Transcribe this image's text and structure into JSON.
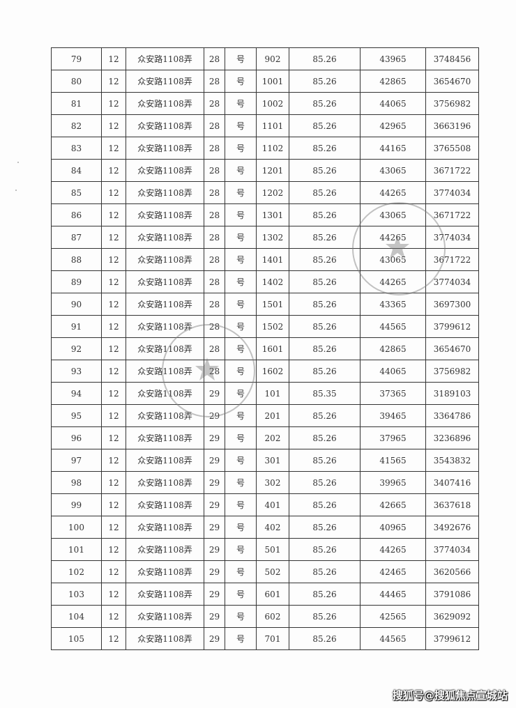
{
  "table": {
    "lane": "众安路1108弄",
    "hao": "号",
    "rows": [
      [
        "79",
        "12",
        "28",
        "902",
        "85.26",
        "43965",
        "3748456"
      ],
      [
        "80",
        "12",
        "28",
        "1001",
        "85.26",
        "42865",
        "3654670"
      ],
      [
        "81",
        "12",
        "28",
        "1002",
        "85.26",
        "44065",
        "3756982"
      ],
      [
        "82",
        "12",
        "28",
        "1101",
        "85.26",
        "42965",
        "3663196"
      ],
      [
        "83",
        "12",
        "28",
        "1102",
        "85.26",
        "44165",
        "3765508"
      ],
      [
        "84",
        "12",
        "28",
        "1201",
        "85.26",
        "43065",
        "3671722"
      ],
      [
        "85",
        "12",
        "28",
        "1202",
        "85.26",
        "44265",
        "3774034"
      ],
      [
        "86",
        "12",
        "28",
        "1301",
        "85.26",
        "43065",
        "3671722"
      ],
      [
        "87",
        "12",
        "28",
        "1302",
        "85.26",
        "44265",
        "3774034"
      ],
      [
        "88",
        "12",
        "28",
        "1401",
        "85.26",
        "43065",
        "3671722"
      ],
      [
        "89",
        "12",
        "28",
        "1402",
        "85.26",
        "44265",
        "3774034"
      ],
      [
        "90",
        "12",
        "28",
        "1501",
        "85.26",
        "43365",
        "3697300"
      ],
      [
        "91",
        "12",
        "28",
        "1502",
        "85.26",
        "44565",
        "3799612"
      ],
      [
        "92",
        "12",
        "28",
        "1601",
        "85.26",
        "42865",
        "3654670"
      ],
      [
        "93",
        "12",
        "28",
        "1602",
        "85.26",
        "44065",
        "3756982"
      ],
      [
        "94",
        "12",
        "29",
        "101",
        "85.35",
        "37365",
        "3189103"
      ],
      [
        "95",
        "12",
        "29",
        "201",
        "85.26",
        "39465",
        "3364786"
      ],
      [
        "96",
        "12",
        "29",
        "202",
        "85.26",
        "37965",
        "3236896"
      ],
      [
        "97",
        "12",
        "29",
        "301",
        "85.26",
        "41565",
        "3543832"
      ],
      [
        "98",
        "12",
        "29",
        "302",
        "85.26",
        "39965",
        "3407416"
      ],
      [
        "99",
        "12",
        "29",
        "401",
        "85.26",
        "42665",
        "3637618"
      ],
      [
        "100",
        "12",
        "29",
        "402",
        "85.26",
        "40965",
        "3492676"
      ],
      [
        "101",
        "12",
        "29",
        "501",
        "85.26",
        "44265",
        "3774034"
      ],
      [
        "102",
        "12",
        "29",
        "502",
        "85.26",
        "42465",
        "3620566"
      ],
      [
        "103",
        "12",
        "29",
        "601",
        "85.26",
        "44465",
        "3791086"
      ],
      [
        "104",
        "12",
        "29",
        "602",
        "85.26",
        "42565",
        "3629092"
      ],
      [
        "105",
        "12",
        "29",
        "701",
        "85.26",
        "44565",
        "3799612"
      ]
    ]
  },
  "watermark": "搜狐号@搜狐焦点宣城站"
}
